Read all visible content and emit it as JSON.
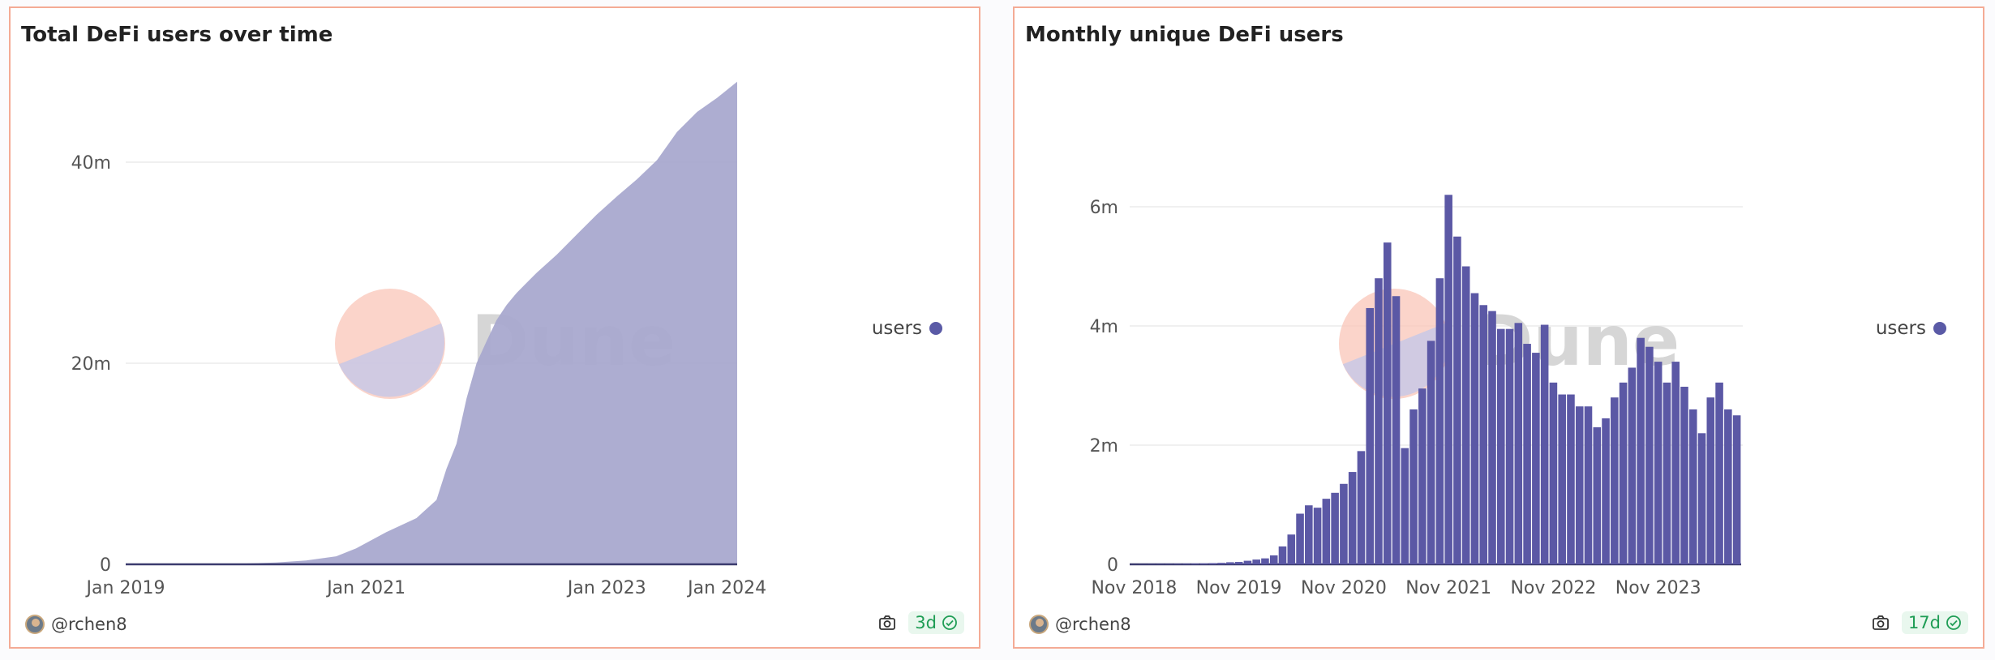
{
  "brand": {
    "watermark": "Dune",
    "logo_colors": {
      "top": "#f9c5b8",
      "bottom": "#c8c8e6"
    },
    "accent": "#5a5aa6"
  },
  "panels": [
    {
      "title": "Total DeFi users over time",
      "author": "@rchen8",
      "age": "3d",
      "legend": "users",
      "icons": {
        "camera": "camera-icon",
        "check": "check-circle-icon"
      }
    },
    {
      "title": "Monthly unique DeFi users",
      "author": "@rchen8",
      "age": "17d",
      "legend": "users",
      "icons": {
        "camera": "camera-icon",
        "check": "check-circle-icon"
      }
    }
  ],
  "chart_data": [
    {
      "type": "area",
      "title": "Total DeFi users over time",
      "series": [
        {
          "name": "users",
          "color": "#a9a9cf"
        }
      ],
      "x_ticks": [
        "Jan 2019",
        "Jan 2021",
        "Jan 2023",
        "Jan 2024"
      ],
      "y_ticks": [
        "0",
        "20m",
        "40m"
      ],
      "ylim": [
        0,
        50000000
      ],
      "xlim": [
        "2019-01",
        "2024-02"
      ],
      "grid": true,
      "legend_position": "right",
      "x": [
        "2019-01",
        "2019-07",
        "2020-01",
        "2020-04",
        "2020-07",
        "2020-10",
        "2020-12",
        "2021-03",
        "2021-06",
        "2021-08",
        "2021-09",
        "2021-10",
        "2021-11",
        "2021-12",
        "2022-01",
        "2022-02",
        "2022-03",
        "2022-04",
        "2022-05",
        "2022-06",
        "2022-08",
        "2022-10",
        "2022-12",
        "2023-02",
        "2023-04",
        "2023-06",
        "2023-08",
        "2023-10",
        "2023-12",
        "2024-02"
      ],
      "values": [
        0,
        20000,
        80000,
        180000,
        380000,
        800000,
        1600000,
        3200000,
        4600000,
        6400000,
        9500000,
        12000000,
        16500000,
        20000000,
        22200000,
        24300000,
        25800000,
        27000000,
        28000000,
        29000000,
        30800000,
        32800000,
        34800000,
        36600000,
        38300000,
        40200000,
        43000000,
        45000000,
        46400000,
        48000000
      ]
    },
    {
      "type": "bar",
      "title": "Monthly unique DeFi users",
      "series": [
        {
          "name": "users",
          "color": "#5b58a5"
        }
      ],
      "x_ticks": [
        "Nov 2018",
        "Nov 2019",
        "Nov 2020",
        "Nov 2021",
        "Nov 2022",
        "Nov 2023"
      ],
      "y_ticks": [
        "0",
        "2m",
        "4m",
        "6m"
      ],
      "ylim": [
        0,
        8000000
      ],
      "grid": true,
      "legend_position": "right",
      "start_month": "2018-11",
      "values": [
        0,
        2000,
        4000,
        5000,
        6000,
        8000,
        10000,
        12000,
        15000,
        20000,
        25000,
        35000,
        40000,
        60000,
        80000,
        100000,
        150000,
        300000,
        500000,
        850000,
        990000,
        950000,
        1100000,
        1200000,
        1350000,
        1550000,
        1900000,
        4300000,
        4800000,
        5400000,
        4500000,
        1950000,
        2600000,
        2950000,
        3750000,
        4800000,
        6200000,
        5500000,
        5000000,
        4550000,
        4350000,
        4250000,
        3950000,
        3950000,
        4050000,
        3700000,
        3550000,
        4020000,
        3050000,
        2850000,
        2850000,
        2650000,
        2650000,
        2300000,
        2450000,
        2800000,
        3050000,
        3300000,
        3800000,
        3650000,
        3400000,
        3050000,
        3400000,
        2980000,
        2600000,
        2200000,
        2800000,
        3050000,
        2600000,
        2500000
      ]
    }
  ]
}
